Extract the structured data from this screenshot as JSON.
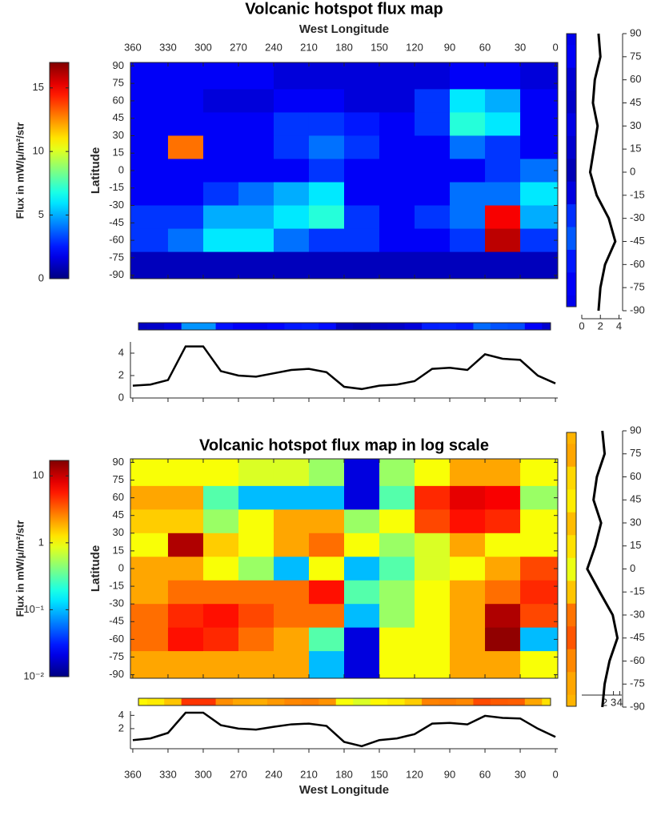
{
  "chart_data": [
    {
      "type": "heatmap",
      "title": "Volcanic hotspot flux map",
      "xlabel": "West Longitude",
      "xlabel_position": "top",
      "ylabel": "Latitude",
      "colorbar_label": "Flux in mW/μ/m²/str",
      "log_scale": false,
      "clim": [
        0,
        17
      ],
      "colorbar_ticks": [
        0,
        5,
        10,
        15
      ],
      "xlim": [
        362,
        -2
      ],
      "ylim": [
        -93,
        93
      ],
      "xticks": [
        360,
        330,
        300,
        270,
        240,
        210,
        180,
        150,
        120,
        90,
        60,
        30,
        0
      ],
      "yticks": [
        90,
        75,
        60,
        45,
        30,
        15,
        0,
        -15,
        -30,
        -45,
        -60,
        -75,
        -90
      ],
      "x": [
        345,
        315,
        285,
        255,
        225,
        195,
        165,
        135,
        105,
        75,
        45,
        15
      ],
      "y": [
        80,
        60,
        40,
        20,
        0,
        -20,
        -40,
        -60,
        -80
      ],
      "z": [
        [
          2,
          2,
          2,
          2,
          1.5,
          1.5,
          1.5,
          1.5,
          1.5,
          2,
          2,
          1.5
        ],
        [
          2,
          2,
          1.5,
          1.5,
          2,
          2,
          1.5,
          1.5,
          3,
          6,
          5,
          2
        ],
        [
          2,
          2,
          2,
          2,
          3,
          3,
          2.5,
          2,
          3,
          7,
          6,
          2
        ],
        [
          2,
          13,
          2,
          2,
          3,
          4,
          3,
          2,
          2,
          4,
          3,
          2
        ],
        [
          2,
          2,
          2,
          2,
          2,
          3,
          2,
          2,
          2,
          2,
          3,
          4
        ],
        [
          2,
          2,
          3,
          4,
          5,
          6,
          2,
          2,
          2,
          4,
          4,
          6
        ],
        [
          3,
          3,
          5,
          5,
          6,
          7,
          3,
          2,
          3,
          4,
          15,
          5
        ],
        [
          3,
          4,
          6,
          6,
          4,
          3,
          3,
          2,
          2,
          3,
          16,
          3
        ],
        [
          1,
          1,
          1,
          1,
          1,
          1,
          1,
          1,
          1,
          1,
          1,
          1
        ]
      ],
      "lon_profile": {
        "x": [
          360,
          345,
          330,
          315,
          300,
          285,
          270,
          255,
          240,
          225,
          210,
          195,
          180,
          165,
          150,
          135,
          120,
          105,
          90,
          75,
          60,
          45,
          30,
          15,
          0
        ],
        "values": [
          1.1,
          1.2,
          1.6,
          4.6,
          4.6,
          2.4,
          2.0,
          1.9,
          2.2,
          2.5,
          2.6,
          2.3,
          1.0,
          0.8,
          1.1,
          1.2,
          1.5,
          2.6,
          2.7,
          2.5,
          3.9,
          3.5,
          3.4,
          2.0,
          1.3
        ],
        "ylim": [
          0,
          5
        ],
        "yticks": [
          0,
          2,
          4
        ]
      },
      "lat_profile": {
        "y": [
          90,
          75,
          60,
          45,
          30,
          15,
          0,
          -15,
          -30,
          -45,
          -60,
          -75,
          -90
        ],
        "values": [
          1.8,
          2.0,
          1.4,
          1.2,
          1.7,
          1.3,
          0.9,
          1.6,
          2.9,
          3.6,
          2.5,
          2.0,
          1.8
        ],
        "xlim": [
          0,
          4.3
        ],
        "xticks": [
          0,
          2,
          4
        ]
      }
    },
    {
      "type": "heatmap",
      "title": "Volcanic hotspot flux map in log scale",
      "xlabel": "West Longitude",
      "xlabel_position": "bottom",
      "ylabel": "Latitude",
      "colorbar_label": "Flux in mW/μ/m²/str",
      "log_scale": true,
      "clim": [
        0.01,
        17
      ],
      "colorbar_ticks": [
        {
          "value": 0.01,
          "label": "10⁻²"
        },
        {
          "value": 0.1,
          "label": "10⁻¹"
        },
        1,
        10
      ],
      "xlim": [
        362,
        -2
      ],
      "ylim": [
        -93,
        93
      ],
      "xticks": [
        360,
        330,
        300,
        270,
        240,
        210,
        180,
        150,
        120,
        90,
        60,
        30,
        0
      ],
      "yticks": [
        90,
        75,
        60,
        45,
        30,
        15,
        0,
        -15,
        -30,
        -45,
        -60,
        -75,
        -90
      ],
      "x": [
        345,
        315,
        285,
        255,
        225,
        195,
        165,
        135,
        105,
        75,
        45,
        15
      ],
      "y": [
        80,
        60,
        40,
        20,
        0,
        -20,
        -40,
        -60,
        -80
      ],
      "z": [
        [
          1,
          1,
          1,
          0.8,
          0.8,
          0.5,
          0.02,
          0.5,
          1,
          2,
          2,
          1
        ],
        [
          2,
          2,
          0.3,
          0.1,
          0.1,
          0.1,
          0.02,
          0.3,
          5,
          8,
          7,
          0.5
        ],
        [
          1.5,
          1.5,
          0.5,
          1,
          2,
          2,
          0.5,
          1,
          4,
          6,
          5,
          1
        ],
        [
          1,
          12,
          1.5,
          1,
          2,
          3,
          1,
          0.5,
          0.8,
          2,
          1,
          1
        ],
        [
          2,
          2,
          1,
          0.5,
          0.1,
          1,
          0.1,
          0.3,
          0.8,
          1,
          2,
          4
        ],
        [
          2,
          3,
          3,
          3,
          3,
          6,
          0.3,
          0.5,
          1,
          2,
          3,
          5
        ],
        [
          3,
          5,
          6,
          4,
          3,
          3,
          0.1,
          0.5,
          1,
          2,
          12,
          4
        ],
        [
          3,
          6,
          5,
          3,
          2,
          0.3,
          0.02,
          1,
          1,
          2,
          15,
          0.1
        ],
        [
          2,
          2,
          2,
          2,
          2,
          0.1,
          0.02,
          1,
          1,
          2,
          2,
          1
        ]
      ],
      "lon_profile": {
        "x": [
          360,
          345,
          330,
          315,
          300,
          285,
          270,
          255,
          240,
          225,
          210,
          195,
          180,
          165,
          150,
          135,
          120,
          105,
          90,
          75,
          60,
          45,
          30,
          15,
          0
        ],
        "values": [
          1.1,
          1.2,
          1.6,
          4.6,
          4.6,
          2.4,
          2.0,
          1.9,
          2.2,
          2.5,
          2.6,
          2.3,
          1.0,
          0.8,
          1.1,
          1.2,
          1.5,
          2.6,
          2.7,
          2.5,
          3.9,
          3.5,
          3.4,
          2.0,
          1.3
        ],
        "ylim": [
          0.7,
          5
        ],
        "yticks": [
          2,
          4
        ]
      },
      "lat_profile": {
        "y": [
          90,
          75,
          60,
          45,
          30,
          15,
          0,
          -15,
          -30,
          -45,
          -60,
          -75,
          -90
        ],
        "values": [
          1.8,
          2.0,
          1.4,
          1.2,
          1.7,
          1.3,
          0.9,
          1.6,
          2.9,
          3.6,
          2.5,
          2.0,
          1.8
        ],
        "xlim": [
          0.7,
          4.4
        ],
        "xticks": [
          2,
          3,
          4
        ]
      }
    }
  ]
}
